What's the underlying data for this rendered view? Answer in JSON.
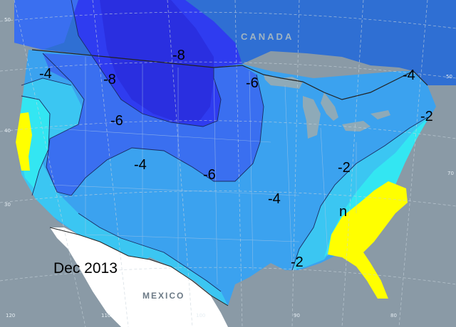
{
  "map": {
    "date_label": "Dec 2013",
    "countries": {
      "canada": "CANADA",
      "mexico": "MEXICO"
    },
    "contour_labels": {
      "w_nw": "-4",
      "nw_8a": "-8",
      "nw_8b": "-8",
      "mid_6": "-6",
      "gl_6": "-6",
      "nw_4": "-4",
      "plains_6": "-6",
      "se_2a": "-2",
      "ne_4": "-4",
      "ne_2": "-2",
      "s_4": "-4",
      "se_n": "n",
      "gulf_2": "-2"
    },
    "grid_labels": {
      "lon_120": "120",
      "lon_110": "110",
      "lon_100": "100",
      "lon_90": "90",
      "lon_80": "80",
      "lon_70": "70",
      "lat_40": "40",
      "lat_30": "30",
      "lat_50": "50",
      "tl_50": "50"
    },
    "colors": {
      "background_gray": "#8a9aa6",
      "ocean": "#8a9aa6",
      "canada": "#2f6fd3",
      "anom_pos": "#ffff00",
      "anom_0": "#33e6f2",
      "anom_m2": "#3bc6f2",
      "anom_m4": "#3ba2ef",
      "anom_m6": "#3a6ff0",
      "anom_m8": "#2f3cf0",
      "mexico": "#ffffff",
      "lakes": "#8eaab8"
    }
  }
}
